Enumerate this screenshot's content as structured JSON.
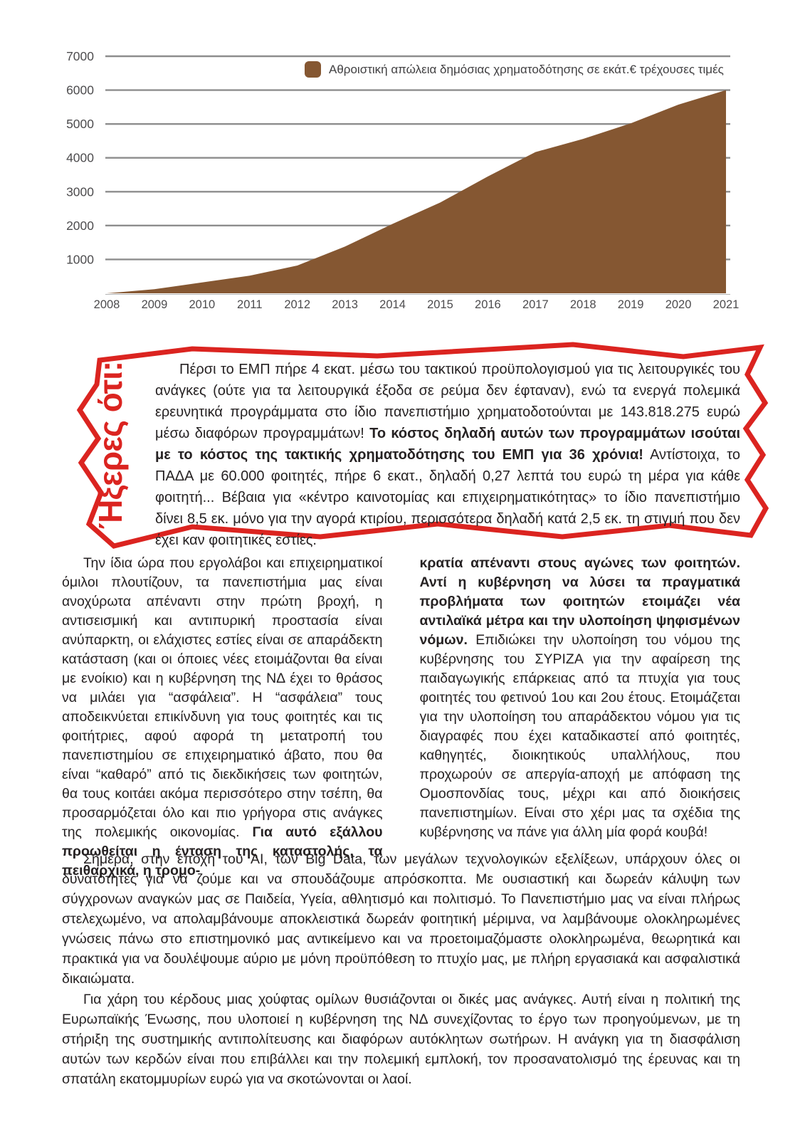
{
  "chart_data": {
    "type": "area",
    "legend": "Αθροιστική απώλεια δημόσιας χρηματοδότησης σε εκάτ.€ τρέχουσες τιμές",
    "categories": [
      "2008",
      "2009",
      "2010",
      "2011",
      "2012",
      "2013",
      "2014",
      "2015",
      "2016",
      "2017",
      "2018",
      "2019",
      "2020",
      "2021"
    ],
    "values": [
      0,
      120,
      320,
      520,
      820,
      1380,
      2050,
      2680,
      3450,
      4170,
      4560,
      5020,
      5570,
      6000
    ],
    "ylabel": "",
    "xlabel": "",
    "ylim": [
      0,
      7000
    ],
    "yticks": [
      1000,
      2000,
      3000,
      4000,
      5000,
      6000,
      7000
    ],
    "grid": true,
    "legend_position": "top-center",
    "area_color": "#855732",
    "gridline_color": "#8d8d8d",
    "axis_text_color": "#4d4c4e"
  },
  "infobox": {
    "title": "Ήξερες ότι:",
    "text_before_bold": "Πέρσι το ΕΜΠ πήρε 4 εκατ. μέσω του τακτικού προϋπολογισμού για τις λειτουργικές του ανάγκες (ούτε για τα λειτουργικά έξοδα σε ρεύμα δεν έφταναν), ενώ τα ενεργά πολεμικά ερευνητικά προγράμματα στο ίδιο πανεπιστήμιο χρηματοδοτούνται με 143.818.275 ευρώ μέσω διαφόρων προγραμμάτων! ",
    "text_bold": "Το κόστος δηλαδή αυτών των προγραμμάτων ισούται με το κόστος της τακτικής χρηματοδότησης του ΕΜΠ για 36 χρόνια!",
    "text_after_bold": " Αντίστοιχα, το ΠΑΔΑ με 60.000 φοιτητές, πήρε 6 εκατ., δηλαδή 0,27 λεπτά του ευρώ τη μέρα για κάθε φοιτητή... Βέβαια για «κέντρο καινοτομίας και επιχειρηματικότητας» το ίδιο πανεπιστήμιο δίνει 8,5 εκ. μόνο για την αγορά κτιρίου, περισσότερα δηλαδή κατά 2,5 εκ. τη στιγμή που δεν έχει καν φοιτητικές εστίες.",
    "border_color": "#db2420"
  },
  "columns": {
    "left_regular": "Την ίδια ώρα που εργολάβοι και επιχειρηματικοί όμιλοι πλουτίζουν, τα πανεπιστήμια μας είναι ανοχύρωτα απέναντι στην πρώτη βροχή, η αντισεισμική και αντιπυρική προστασία είναι ανύπαρκτη, οι ελάχιστες εστίες είναι σε απαράδεκτη κατάσταση (και οι όποιες νέες ετοιμάζονται θα είναι με ενοίκιο) και η κυβέρνηση της ΝΔ έχει το θράσος να μιλάει για “ασφάλεια”. Η “ασφάλεια” τους αποδεικνύεται επικίνδυνη για τους φοιτητές και τις φοιτήτριες, αφού αφορά τη μετατροπή του πανεπιστημίου σε επιχειρηματικό άβατο, που θα είναι “καθαρό” από τις διεκδικήσεις των φοιτητών, θα τους κοιτάει ακόμα περισσότερο στην τσέπη, θα προσαρμόζεται όλο και πιο γρήγορα στις ανάγκες της πολεμικής οικονομίας. ",
    "left_bold": "Για αυτό εξάλλου προωθείται η ένταση της καταστολής, τα πειθαρχικά, η τρομο-",
    "right_bold": "κρατία απέναντι στους αγώνες των φοιτητών. Αντί η κυβέρνηση να λύσει τα πραγματικά προβλήματα των φοιτητών ετοιμάζει νέα αντιλαϊκά μέτρα και την υλοποίηση ψηφισμένων νόμων. ",
    "right_regular": "Επιδιώκει την υλοποίηση του νόμου της κυβέρνησης του ΣΥΡΙΖΑ για την αφαίρεση της παιδαγωγικής επάρκειας από τα πτυχία για τους φοιτητές του φετινού 1ου και 2ου έτους. Ετοιμάζεται για την υλοποίηση του απαράδεκτου νόμου για τις διαγραφές που έχει καταδικαστεί από φοιτητές, καθηγητές, διοικητικούς υπαλλήλους, που προχωρούν σε απεργία-αποχή με απόφαση της Ομοσπονδίας τους, μέχρι και από διοικήσεις πανεπιστημίων. Είναι στο χέρι μας τα σχέδια της κυβέρνησης να πάνε για άλλη μία φορά κουβά!"
  },
  "paragraphs": [
    "Σήμερα, στην εποχή του AI, των Big Data, των μεγάλων τεχνολογικών εξελίξεων, υπάρχουν όλες οι δυνατότητες για να ζούμε και να σπουδάζουμε απρόσκοπτα. Με ουσιαστική και δωρεάν κάλυψη των σύγχρονων αναγκών μας σε Παιδεία, Υγεία, αθλητισμό και πολιτισμό. Το Πανεπιστήμιο μας να είναι πλήρως στελεχωμένο, να απολαμβάνουμε αποκλειστικά δωρεάν φοιτητική μέριμνα, να λαμβάνουμε ολοκληρωμένες γνώσεις πάνω στο επιστημονικό μας αντικείμενο και να προετοιμαζόμαστε ολοκληρωμένα, θεωρητικά και πρακτικά για να δουλέψουμε αύριο με μόνη προϋπόθεση το πτυχίο μας, με πλήρη εργασιακά και ασφαλιστικά δικαιώματα.",
    "Για χάρη του κέρδους μιας χούφτας ομίλων θυσιάζονται οι δικές μας ανάγκες. Αυτή είναι η πολιτική της Ευρωπαϊκής Ένωσης, που υλοποιεί η κυβέρνηση της ΝΔ συνεχίζοντας το έργο των προηγούμενων, με τη στήριξη της συστημικής αντιπολίτευσης και διαφόρων αυτόκλητων σωτήρων. Η ανάγκη για τη διασφάλιση αυτών των κερδών είναι που επιβάλλει και την πολεμική εμπλοκή, τον προσανατολισμό της έρευνας και τη σπατάλη εκατομμυρίων ευρώ για να σκοτώνονται οι λαοί."
  ]
}
